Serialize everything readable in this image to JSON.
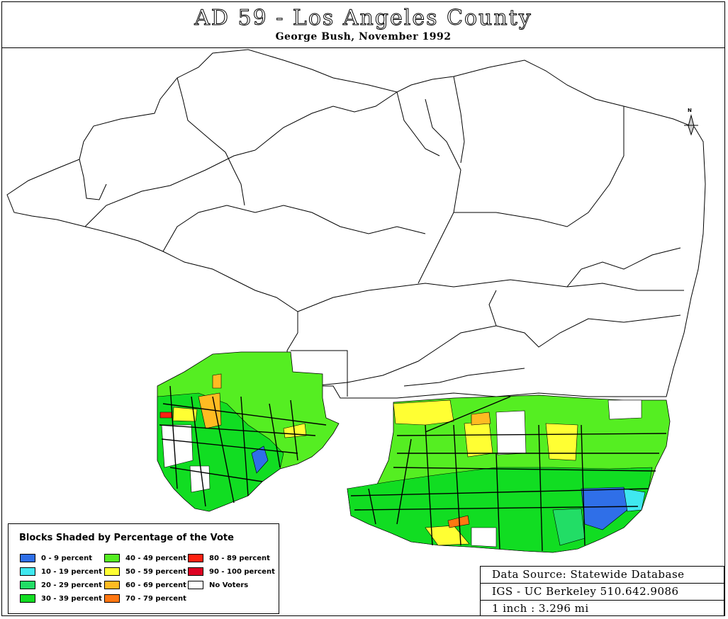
{
  "header": {
    "title": "AD 59 - Los Angeles County",
    "subtitle": "George Bush, November 1992"
  },
  "legend": {
    "title": "Blocks Shaded by Percentage of the Vote",
    "items": [
      {
        "label": "0 - 9 percent",
        "color": "#2f6fe8"
      },
      {
        "label": "10 - 19 percent",
        "color": "#3fe8f0"
      },
      {
        "label": "20 - 29 percent",
        "color": "#22dd66"
      },
      {
        "label": "30 - 39 percent",
        "color": "#11dd22"
      },
      {
        "label": "40 - 49 percent",
        "color": "#55ee22"
      },
      {
        "label": "50 - 59 percent",
        "color": "#ffff33"
      },
      {
        "label": "60 - 69 percent",
        "color": "#ffbb22"
      },
      {
        "label": "70 - 79 percent",
        "color": "#ff7711"
      },
      {
        "label": "80 - 89 percent",
        "color": "#ff2211"
      },
      {
        "label": "90 - 100 percent",
        "color": "#dd0022"
      },
      {
        "label": "No Voters",
        "color": "#ffffff"
      }
    ]
  },
  "source": {
    "line1": "Data Source: Statewide Database",
    "line2": "IGS - UC Berkeley 510.642.9086",
    "scale": "1 inch : 3.296 mi"
  },
  "north_arrow": {
    "label": "N"
  }
}
